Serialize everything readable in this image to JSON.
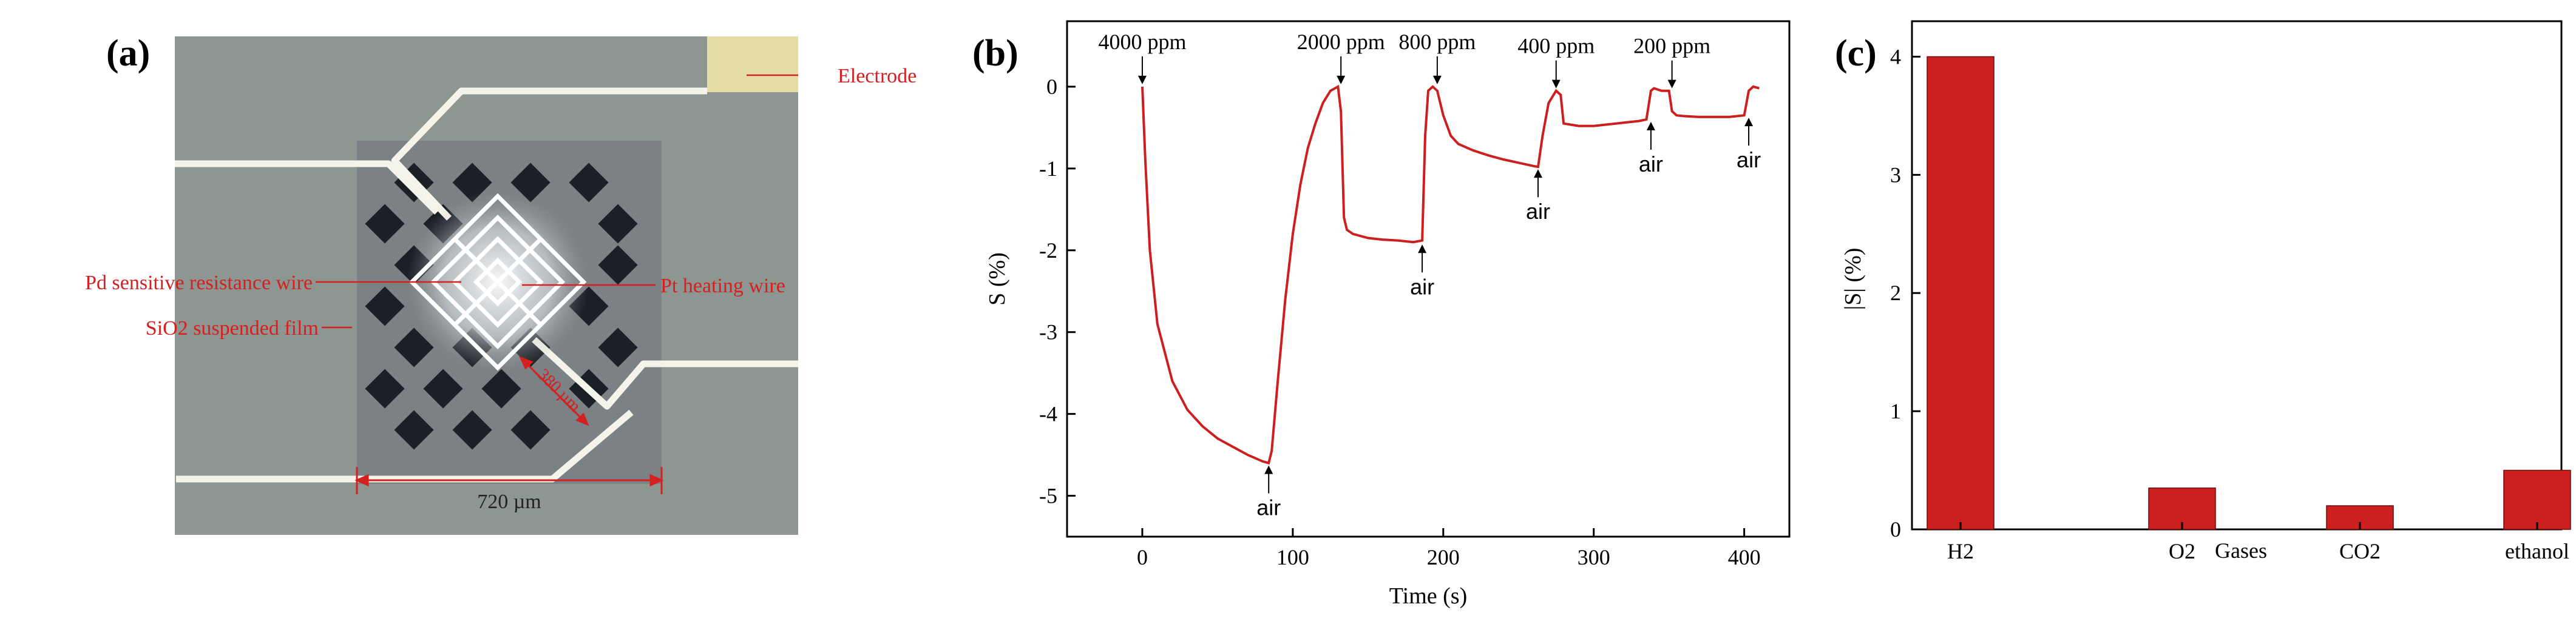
{
  "panels": {
    "a": {
      "label": "(a)",
      "annotations": {
        "electrode": "Electrode",
        "pd_wire": "Pd sensitive resistance wire",
        "pt_wire": "Pt heating wire",
        "sio2_film": "SiO2 suspended film",
        "width": "720 µm",
        "diagonal": "380 µm"
      }
    },
    "b": {
      "label": "(b)",
      "annotations": [
        "4000 ppm",
        "2000 ppm",
        "800 ppm",
        "400 ppm",
        "200 ppm",
        "air",
        "air",
        "air",
        "air",
        "air"
      ]
    },
    "c": {
      "label": "(c)"
    }
  },
  "colors": {
    "trace": "#cc1f1f",
    "bar": "#cc1f1f",
    "annotation": "#d42020",
    "axis": "#000000"
  },
  "chart_data": [
    {
      "id": "b",
      "type": "line",
      "title": "",
      "xlabel": "Time (s)",
      "ylabel": "S (%)",
      "xlim": [
        -50,
        430
      ],
      "ylim": [
        -5.5,
        0.8
      ],
      "xticks": [
        0,
        100,
        200,
        300,
        400
      ],
      "yticks": [
        0,
        -1,
        -2,
        -3,
        -4,
        -5
      ],
      "series": [
        {
          "name": "S",
          "x": [
            0,
            2,
            5,
            10,
            20,
            30,
            40,
            50,
            60,
            70,
            80,
            84,
            86,
            90,
            95,
            100,
            105,
            110,
            115,
            120,
            125,
            130,
            132,
            134,
            136,
            140,
            150,
            160,
            170,
            180,
            186,
            188,
            190,
            193,
            196,
            200,
            205,
            210,
            220,
            230,
            240,
            250,
            260,
            263,
            266,
            270,
            275,
            278,
            280,
            290,
            300,
            310,
            320,
            330,
            335,
            338,
            340,
            345,
            350,
            352,
            355,
            360,
            370,
            380,
            390,
            400,
            403,
            406,
            410
          ],
          "y": [
            0,
            -0.9,
            -2.0,
            -2.9,
            -3.6,
            -3.95,
            -4.15,
            -4.3,
            -4.4,
            -4.5,
            -4.58,
            -4.6,
            -4.45,
            -3.6,
            -2.6,
            -1.8,
            -1.2,
            -0.75,
            -0.45,
            -0.2,
            -0.05,
            0,
            -0.3,
            -1.6,
            -1.75,
            -1.8,
            -1.85,
            -1.87,
            -1.88,
            -1.9,
            -1.88,
            -0.6,
            -0.05,
            0,
            -0.05,
            -0.35,
            -0.6,
            -0.7,
            -0.78,
            -0.84,
            -0.89,
            -0.93,
            -0.97,
            -0.98,
            -0.6,
            -0.2,
            -0.05,
            -0.1,
            -0.45,
            -0.48,
            -0.48,
            -0.46,
            -0.44,
            -0.42,
            -0.4,
            -0.05,
            -0.02,
            -0.05,
            -0.05,
            -0.3,
            -0.35,
            -0.36,
            -0.37,
            -0.37,
            -0.37,
            -0.35,
            -0.05,
            0,
            -0.02
          ]
        }
      ]
    },
    {
      "id": "c",
      "type": "bar",
      "title": "",
      "xlabel": "Gases",
      "ylabel": "|S| (%)",
      "categories": [
        "H2",
        "O2",
        "CO2",
        "ethanol"
      ],
      "values": [
        4.0,
        0.35,
        0.2,
        0.5
      ],
      "ylim": [
        0,
        4.3
      ],
      "yticks": [
        0,
        1,
        2,
        3,
        4
      ]
    }
  ]
}
